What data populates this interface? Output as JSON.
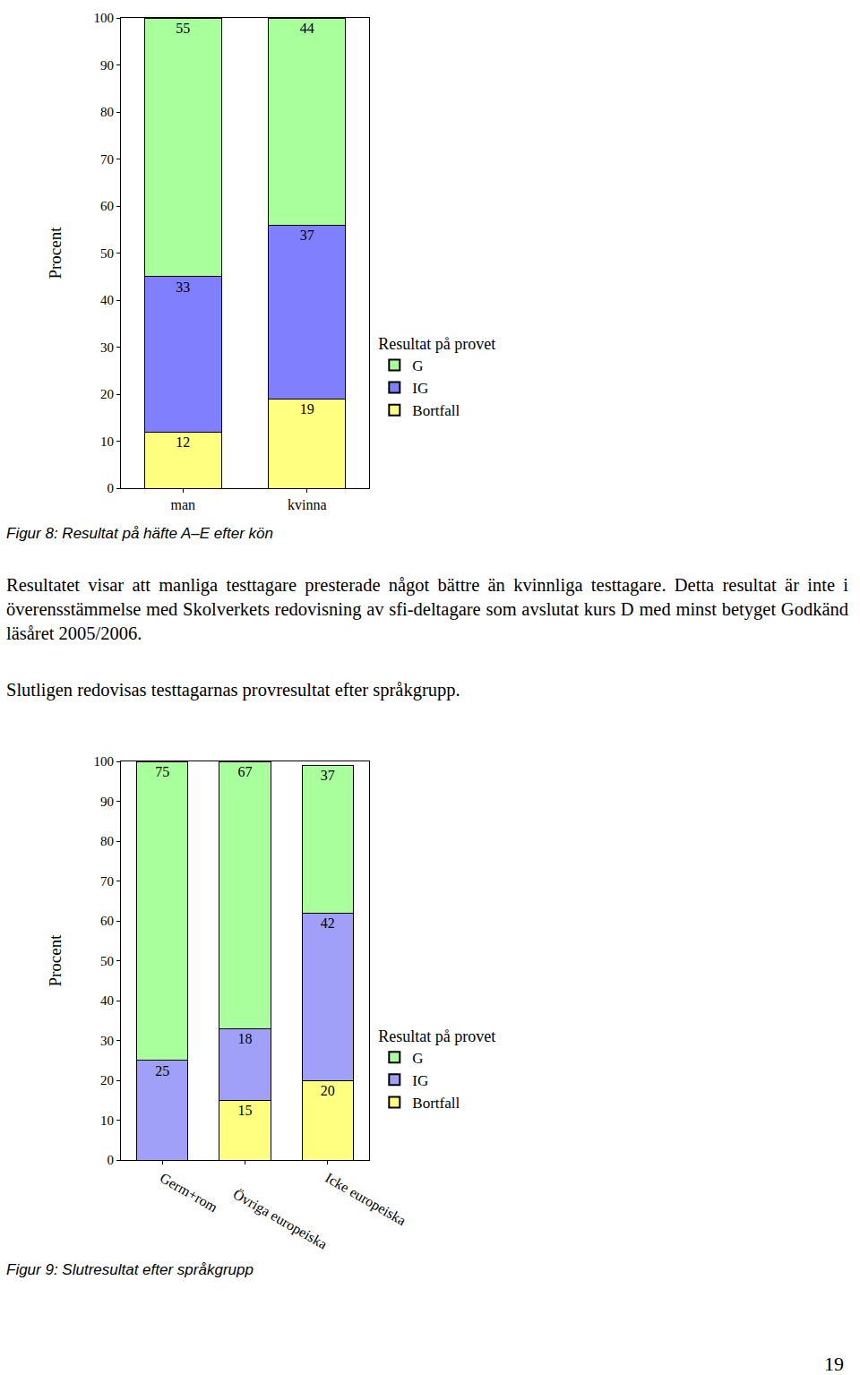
{
  "chart_data": [
    {
      "type": "bar",
      "stacked": true,
      "data_labels": true,
      "y_label": "Procent",
      "categories": [
        "man",
        "kvinna"
      ],
      "series": [
        {
          "name": "Bortfall",
          "color": "#ffff80",
          "values": [
            12,
            19
          ]
        },
        {
          "name": "IG",
          "color": "#8080ff",
          "values": [
            33,
            37
          ]
        },
        {
          "name": "G",
          "color": "#a8ff9c",
          "values": [
            55,
            44
          ]
        }
      ],
      "ylim": [
        0,
        100
      ],
      "yticks": [
        0,
        10,
        20,
        30,
        40,
        50,
        60,
        70,
        80,
        90,
        100
      ],
      "legend_title": "Resultat på provet",
      "legend": "right"
    },
    {
      "type": "bar",
      "stacked": true,
      "data_labels": true,
      "y_label": "Procent",
      "categories": [
        "Germ+rom",
        "Övriga europeiska",
        "Icke europeiska"
      ],
      "series": [
        {
          "name": "Bortfall",
          "color": "#ffff80",
          "values": [
            null,
            15,
            20
          ]
        },
        {
          "name": "IG",
          "color": "#a0a0f8",
          "values": [
            25,
            18,
            42
          ]
        },
        {
          "name": "G",
          "color": "#a8ff9c",
          "values": [
            75,
            67,
            37
          ]
        }
      ],
      "ylim": [
        0,
        100
      ],
      "yticks": [
        0,
        10,
        20,
        30,
        40,
        50,
        60,
        70,
        80,
        90,
        100
      ],
      "legend_title": "Resultat på provet",
      "legend": "right"
    }
  ],
  "document": {
    "captions": [
      "Figur 8: Resultat på häfte A–E efter kön",
      "Figur 9: Slutresultat efter språkgrupp"
    ],
    "paragraphs": [
      "Resultatet visar att manliga testtagare presterade något bättre än kvinnliga testtagare. Detta resultat är inte i överensstämmelse med Skolverkets redovisning av sfi-deltagare som avslutat kurs D med minst betyget Godkänd läsåret 2005/2006.",
      "Slutligen redovisas testtagarnas provresultat efter språkgrupp."
    ],
    "page_number": 19
  }
}
